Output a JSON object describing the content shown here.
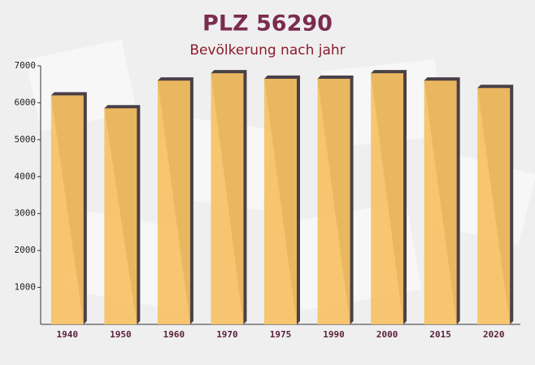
{
  "chart_data": {
    "type": "bar",
    "title": "PLZ 56290",
    "subtitle": "Bevölkerung nach jahr",
    "categories": [
      "1940",
      "1950",
      "1960",
      "1970",
      "1975",
      "1990",
      "2000",
      "2015",
      "2020"
    ],
    "values": [
      6200,
      5850,
      6600,
      6800,
      6650,
      6650,
      6800,
      6600,
      6400
    ],
    "color": "#f7c164",
    "ylim": [
      0,
      7000
    ],
    "yticks": [
      1000,
      2000,
      3000,
      4000,
      5000,
      6000,
      7000
    ],
    "grid": false
  }
}
